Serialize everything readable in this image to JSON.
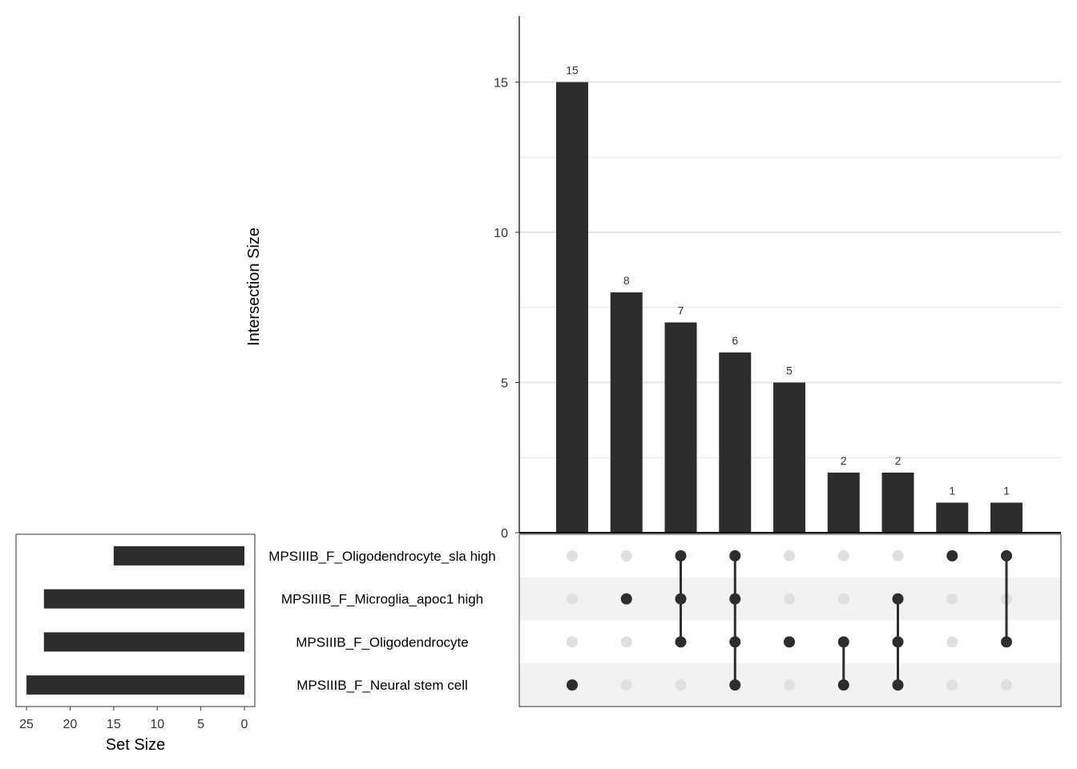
{
  "chart_data": {
    "type": "bar",
    "subtype": "upset",
    "ylabel": "Intersection Size",
    "ylim": [
      0,
      17.2
    ],
    "yticks": [
      0,
      5,
      10,
      15
    ],
    "grid": true,
    "bar_color": "#2d2d2d",
    "dot_inactive_color": "#e0e0e0",
    "sets": [
      {
        "name": "MPSIIIB_F_Oligodendrocyte_sla high",
        "size": 15
      },
      {
        "name": "MPSIIIB_F_Microglia_apoc1 high",
        "size": 23
      },
      {
        "name": "MPSIIIB_F_Oligodendrocyte",
        "size": 23
      },
      {
        "name": "MPSIIIB_F_Neural stem cell",
        "size": 25
      }
    ],
    "intersections": [
      {
        "value": 15,
        "label": "15",
        "members": [
          3
        ]
      },
      {
        "value": 8,
        "label": "8",
        "members": [
          1
        ]
      },
      {
        "value": 7,
        "label": "7",
        "members": [
          0,
          1,
          2
        ]
      },
      {
        "value": 6,
        "label": "6",
        "members": [
          0,
          1,
          2,
          3
        ]
      },
      {
        "value": 5,
        "label": "5",
        "members": [
          2
        ]
      },
      {
        "value": 2,
        "label": "2",
        "members": [
          2,
          3
        ]
      },
      {
        "value": 2,
        "label": "2",
        "members": [
          1,
          2,
          3
        ]
      },
      {
        "value": 1,
        "label": "1",
        "members": [
          0
        ]
      },
      {
        "value": 1,
        "label": "1",
        "members": [
          0,
          2
        ]
      }
    ],
    "set_size_axis": {
      "label": "Set Size",
      "xlim": [
        0,
        26.2
      ],
      "ticks": [
        25,
        20,
        15,
        10,
        5,
        0
      ]
    }
  }
}
